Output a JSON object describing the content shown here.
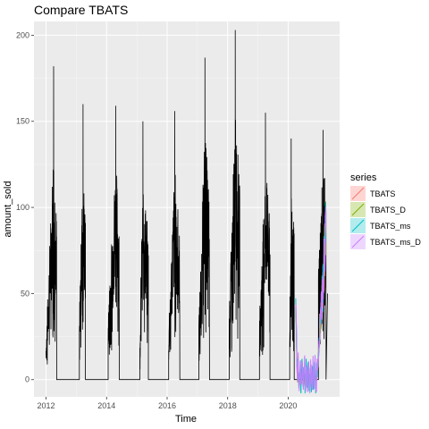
{
  "chart_data": {
    "type": "line",
    "title": "Compare TBATS",
    "xlabel": "Time",
    "ylabel": "amount_sold",
    "xlim": [
      2011.6,
      2021.7
    ],
    "ylim": [
      -10,
      208
    ],
    "x_ticks": [
      2012,
      2014,
      2016,
      2018,
      2020
    ],
    "x_tick_labels": [
      "2012",
      "2014",
      "2016",
      "2018",
      "2020"
    ],
    "y_ticks": [
      0,
      50,
      100,
      150,
      200
    ],
    "y_tick_labels": [
      "0",
      "50",
      "100",
      "150",
      "200"
    ],
    "grid": true,
    "legend": {
      "title": "series",
      "position": "right",
      "entries": [
        {
          "label": "TBATS",
          "color": "#F8766D"
        },
        {
          "label": "TBATS_D",
          "color": "#7CAE00"
        },
        {
          "label": "TBATS_ms",
          "color": "#00BFC4"
        },
        {
          "label": "TBATS_ms_D",
          "color": "#C77CFF"
        }
      ]
    },
    "observed_color": "#000000",
    "seasons": [
      {
        "start": 2012.0,
        "peak_x": 2012.25,
        "peak": 182,
        "end": 2012.35,
        "base": 18
      },
      {
        "start": 2013.1,
        "peak_x": 2013.22,
        "peak": 160,
        "end": 2013.3,
        "base": 28
      },
      {
        "start": 2014.05,
        "peak_x": 2014.3,
        "peak": 159,
        "end": 2014.42,
        "base": 30
      },
      {
        "start": 2015.1,
        "peak_x": 2015.2,
        "peak": 150,
        "end": 2015.38,
        "base": 24
      },
      {
        "start": 2016.05,
        "peak_x": 2016.25,
        "peak": 156,
        "end": 2016.42,
        "base": 26
      },
      {
        "start": 2017.05,
        "peak_x": 2017.25,
        "peak": 187,
        "end": 2017.4,
        "base": 28
      },
      {
        "start": 2018.05,
        "peak_x": 2018.25,
        "peak": 203,
        "end": 2018.4,
        "base": 28
      },
      {
        "start": 2019.05,
        "peak_x": 2019.25,
        "peak": 155,
        "end": 2019.4,
        "base": 28
      },
      {
        "start": 2020.05,
        "peak_x": 2020.1,
        "peak": 140,
        "end": 2020.2,
        "base": 30
      },
      {
        "start": 2021.0,
        "peak_x": 2021.15,
        "peak": 145,
        "end": 2021.25,
        "base": 50
      }
    ],
    "forecast_window": {
      "start": 2020.25,
      "end": 2021.25
    }
  }
}
